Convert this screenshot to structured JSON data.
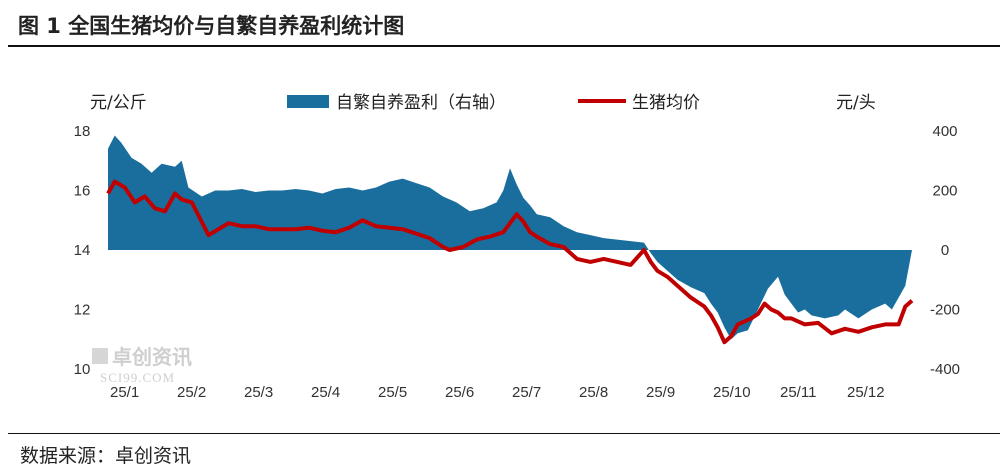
{
  "figure": {
    "title": "图 1  全国生猪均价与自繁自养盈利统计图",
    "source": "数据来源：卓创资讯"
  },
  "watermark": {
    "brand": "卓创资讯",
    "site": "SCI99.COM"
  },
  "chart_data": {
    "type": "line",
    "left_axis": {
      "unit": "元/公斤",
      "ylim": [
        10,
        18
      ],
      "ticks": [
        "10",
        "12",
        "14",
        "16",
        "18"
      ]
    },
    "right_axis": {
      "unit": "元/头",
      "ylim": [
        -400,
        400
      ],
      "ticks": [
        "-400",
        "-200",
        "0",
        "200",
        "400"
      ]
    },
    "x_tick_labels": [
      "25/1",
      "25/2",
      "25/3",
      "25/4",
      "25/5",
      "25/6",
      "25/7",
      "25/8",
      "25/9",
      "25/10",
      "25/11",
      "25/12"
    ],
    "grid": false,
    "legend_placement": "top",
    "colors": {
      "profit": "#1a6e9e",
      "price": "#c00000"
    },
    "series": [
      {
        "name": "自繁自养盈利（右轴）",
        "kind": "area",
        "axis": "right",
        "months": [
          1,
          1.1,
          1.2,
          1.35,
          1.5,
          1.65,
          1.8,
          2,
          2.1,
          2.2,
          2.4,
          2.6,
          2.8,
          3,
          3.2,
          3.4,
          3.6,
          3.8,
          4,
          4.2,
          4.4,
          4.6,
          4.8,
          5,
          5.2,
          5.4,
          5.6,
          5.8,
          6,
          6.2,
          6.4,
          6.6,
          6.8,
          6.9,
          7,
          7.1,
          7.2,
          7.3,
          7.4,
          7.6,
          7.8,
          8,
          8.2,
          8.4,
          8.6,
          8.8,
          9,
          9.1,
          9.2,
          9.35,
          9.5,
          9.7,
          9.9,
          10,
          10.1,
          10.2,
          10.3,
          10.4,
          10.55,
          10.7,
          10.85,
          11,
          11.1,
          11.2,
          11.3,
          11.4,
          11.5,
          11.7,
          11.9,
          12,
          12.2,
          12.4,
          12.6,
          12.7,
          12.8,
          12.9,
          13
        ],
        "values": [
          340,
          385,
          360,
          310,
          290,
          260,
          290,
          280,
          300,
          210,
          180,
          200,
          200,
          205,
          195,
          200,
          200,
          205,
          200,
          190,
          205,
          210,
          200,
          210,
          230,
          240,
          225,
          210,
          180,
          160,
          130,
          140,
          160,
          200,
          275,
          220,
          175,
          150,
          120,
          110,
          80,
          60,
          50,
          40,
          35,
          30,
          25,
          -10,
          -40,
          -70,
          -100,
          -125,
          -145,
          -180,
          -210,
          -260,
          -300,
          -280,
          -270,
          -200,
          -130,
          -90,
          -150,
          -180,
          -210,
          -200,
          -220,
          -230,
          -220,
          -200,
          -230,
          -200,
          -180,
          -200,
          -160,
          -120,
          0
        ]
      },
      {
        "name": "生猪均价",
        "kind": "line",
        "axis": "left",
        "months": [
          1,
          1.1,
          1.25,
          1.4,
          1.55,
          1.7,
          1.85,
          2,
          2.1,
          2.25,
          2.5,
          2.8,
          3,
          3.2,
          3.4,
          3.6,
          3.8,
          4,
          4.2,
          4.4,
          4.6,
          4.8,
          5,
          5.2,
          5.4,
          5.6,
          5.8,
          6,
          6.1,
          6.3,
          6.5,
          6.7,
          6.9,
          7,
          7.1,
          7.2,
          7.3,
          7.4,
          7.6,
          7.8,
          8,
          8.2,
          8.4,
          8.6,
          8.8,
          9,
          9.1,
          9.2,
          9.35,
          9.5,
          9.7,
          9.9,
          10,
          10.1,
          10.2,
          10.3,
          10.4,
          10.5,
          10.6,
          10.7,
          10.8,
          10.9,
          11,
          11.1,
          11.2,
          11.4,
          11.6,
          11.8,
          12,
          12.2,
          12.4,
          12.6,
          12.8,
          12.9,
          13
        ],
        "values": [
          15.9,
          16.3,
          16.1,
          15.6,
          15.8,
          15.4,
          15.3,
          15.9,
          15.7,
          15.6,
          14.5,
          14.9,
          14.8,
          14.8,
          14.7,
          14.7,
          14.7,
          14.75,
          14.65,
          14.6,
          14.75,
          15.0,
          14.8,
          14.75,
          14.7,
          14.55,
          14.4,
          14.1,
          14.0,
          14.1,
          14.35,
          14.45,
          14.6,
          14.9,
          15.2,
          14.95,
          14.6,
          14.45,
          14.2,
          14.1,
          13.7,
          13.6,
          13.7,
          13.6,
          13.5,
          14.0,
          13.6,
          13.3,
          13.1,
          12.8,
          12.4,
          12.1,
          11.8,
          11.4,
          10.9,
          11.1,
          11.5,
          11.6,
          11.7,
          11.85,
          12.2,
          12.0,
          11.9,
          11.7,
          11.7,
          11.5,
          11.55,
          11.2,
          11.35,
          11.25,
          11.4,
          11.5,
          11.5,
          12.1,
          12.3
        ]
      }
    ]
  }
}
